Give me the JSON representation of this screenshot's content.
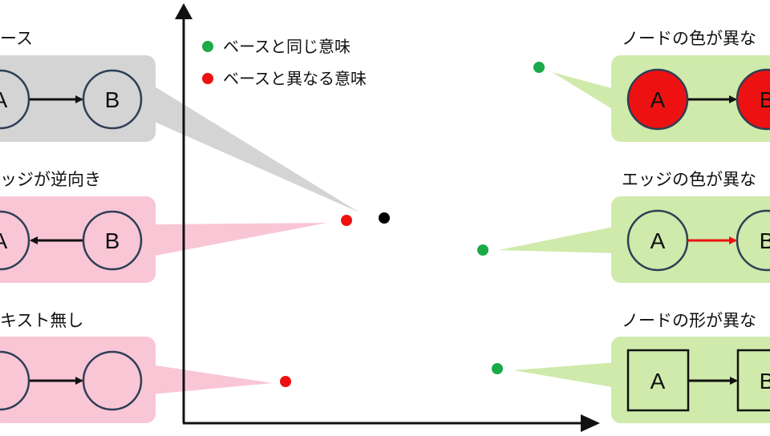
{
  "legend": {
    "same": {
      "label": "ベースと同じ意味",
      "color": "#1aaa48"
    },
    "different": {
      "label": "ベースと異なる意味",
      "color": "#ee1111"
    }
  },
  "colors": {
    "base_box": "#d4d4d4",
    "diff_box": "#f9c6d6",
    "same_box": "#cfeaaa",
    "node_stroke": "#2e3f55",
    "red_node_fill": "#ee1111",
    "black_point": "#000000"
  },
  "panels": {
    "base": {
      "title": "ース",
      "node_a": "A",
      "node_b": "B"
    },
    "reverse_edge": {
      "title": "ッジが逆向き",
      "node_a": "A",
      "node_b": "B"
    },
    "no_text": {
      "title": "キスト無し",
      "node_a": "",
      "node_b": ""
    },
    "node_color": {
      "title": "ノードの色が異な",
      "node_a": "A",
      "node_b": "B"
    },
    "edge_color": {
      "title": "エッジの色が異な",
      "node_a": "A",
      "node_b": "B"
    },
    "node_shape": {
      "title": "ノードの形が異な",
      "node_a": "A",
      "node_b": "B"
    }
  }
}
